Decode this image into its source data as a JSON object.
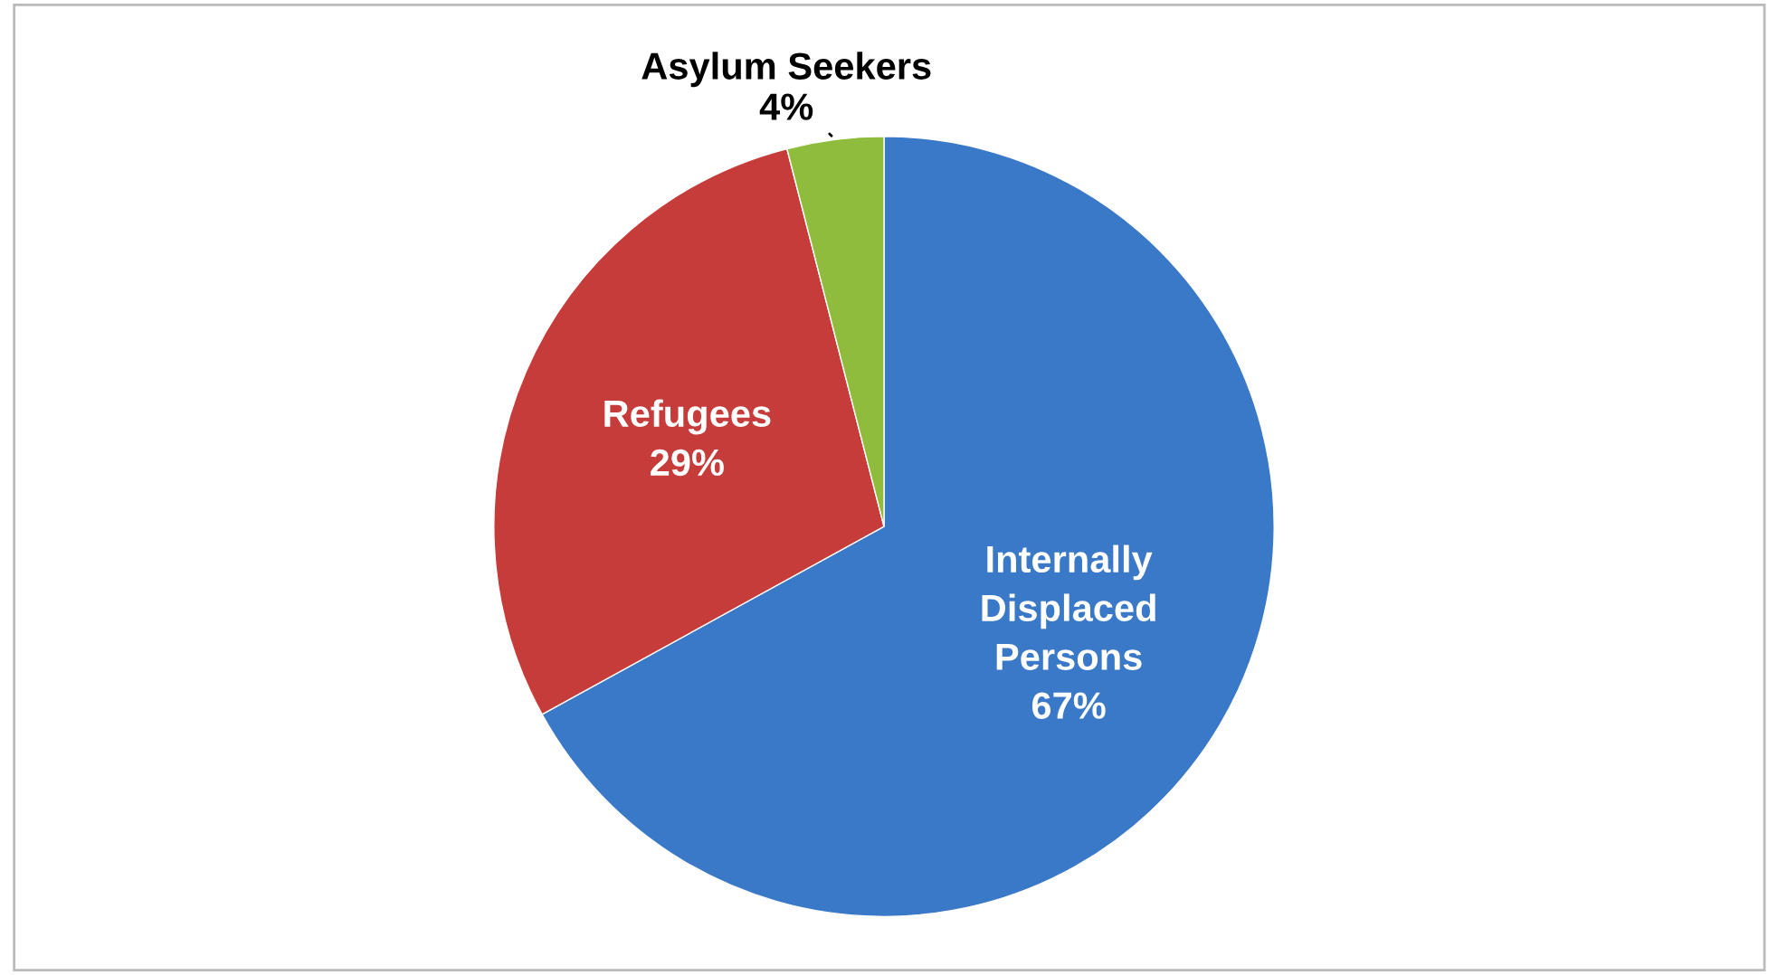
{
  "chart_data": {
    "type": "pie",
    "categories": [
      "Internally Displaced Persons",
      "Refugees",
      "Asylum Seekers"
    ],
    "values": [
      67,
      29,
      4
    ],
    "value_labels": [
      "67%",
      "29%",
      "4%"
    ],
    "colors": [
      "#3a78c8",
      "#c63c3a",
      "#8fbc3c"
    ],
    "legend": false
  }
}
